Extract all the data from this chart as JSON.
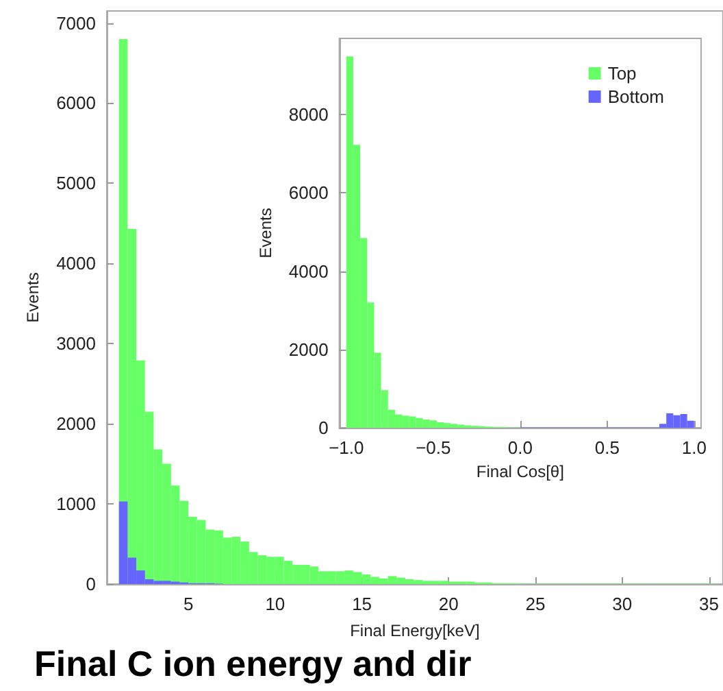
{
  "chart_data": [
    {
      "type": "histogram",
      "title": "Final C ion energy and dir",
      "xlabel": "Final Energy[keV]",
      "ylabel": "Events",
      "xlim": [
        0.3,
        35.8
      ],
      "ylim": [
        0,
        7150
      ],
      "xticks": [
        5,
        10,
        15,
        20,
        25,
        30,
        35
      ],
      "yticks": [
        0,
        1000,
        2000,
        3000,
        4000,
        5000,
        6000,
        7000
      ],
      "grid": false,
      "legend": false,
      "bins": [
        1,
        1.5,
        2,
        2.5,
        3,
        3.5,
        4,
        4.5,
        5,
        5.5,
        6,
        6.5,
        7,
        7.5,
        8,
        8.5,
        9,
        9.5,
        10,
        10.5,
        11,
        11.5,
        12,
        12.5,
        13,
        13.5,
        14,
        14.5,
        15,
        15.5,
        16,
        16.5,
        17,
        17.5,
        18,
        18.5,
        19,
        19.5,
        20,
        20.5,
        21,
        21.5,
        22,
        22.5,
        23,
        23.5,
        24,
        24.5,
        25,
        25.5,
        26,
        26.5,
        27,
        27.5,
        28,
        28.5,
        29,
        29.5,
        30,
        30.5,
        31,
        31.5,
        32,
        32.5,
        33,
        33.5,
        34,
        34.5,
        35,
        35.5
      ],
      "series": [
        {
          "color": "#66ff66",
          "values": [
            6800,
            4430,
            2790,
            2150,
            1680,
            1500,
            1230,
            1040,
            840,
            800,
            680,
            670,
            580,
            590,
            530,
            400,
            360,
            340,
            340,
            290,
            240,
            240,
            220,
            160,
            160,
            160,
            170,
            150,
            120,
            90,
            70,
            100,
            80,
            60,
            50,
            40,
            40,
            40,
            30,
            30,
            30,
            20,
            20,
            10,
            10,
            10,
            5,
            5,
            5,
            5,
            5,
            5,
            5,
            5,
            5,
            5,
            5,
            5,
            5,
            5,
            5,
            5,
            5,
            5,
            5,
            5,
            5,
            5,
            5
          ]
        },
        {
          "color": "#6666ff",
          "values": [
            1030,
            330,
            170,
            60,
            40,
            40,
            30,
            20,
            10,
            10,
            10,
            5,
            0,
            0,
            0,
            0,
            0,
            0,
            0,
            0,
            0,
            0,
            0,
            0,
            0,
            0,
            0,
            0,
            0,
            0,
            0,
            0,
            0,
            0,
            0,
            0,
            0,
            0,
            0,
            0,
            0,
            0,
            0,
            0,
            0,
            0,
            0,
            0,
            0,
            0,
            0,
            0,
            0,
            0,
            0,
            0,
            0,
            0,
            0,
            0,
            0,
            0,
            0,
            0,
            0,
            0,
            0,
            0,
            0
          ]
        }
      ]
    },
    {
      "type": "histogram",
      "xlabel": "Final Cos[θ]",
      "ylabel": "Events",
      "xlim": [
        -1.04,
        1.04
      ],
      "ylim": [
        0,
        9950
      ],
      "xticks": [
        {
          "value": -1,
          "label": "−1.0"
        },
        {
          "value": -0.5,
          "label": "−0.5"
        },
        {
          "value": 0,
          "label": "0.0"
        },
        {
          "value": 0.5,
          "label": "0.5"
        },
        {
          "value": 1,
          "label": "1.0"
        }
      ],
      "yticks": [
        0,
        2000,
        4000,
        6000,
        8000
      ],
      "grid": false,
      "legend": "top right",
      "bins": [
        -1,
        -0.96,
        -0.92,
        -0.88,
        -0.84,
        -0.8,
        -0.76,
        -0.72,
        -0.68,
        -0.64,
        -0.6,
        -0.56,
        -0.52,
        -0.48,
        -0.44,
        -0.4,
        -0.36,
        -0.32,
        -0.28,
        -0.24,
        -0.2,
        -0.16,
        -0.12,
        -0.08,
        -0.04,
        0,
        0.04,
        0.08,
        0.12,
        0.16,
        0.2,
        0.24,
        0.28,
        0.32,
        0.36,
        0.4,
        0.44,
        0.48,
        0.52,
        0.56,
        0.6,
        0.64,
        0.68,
        0.72,
        0.76,
        0.8,
        0.84,
        0.88,
        0.92,
        0.96,
        1
      ],
      "series": [
        {
          "name": "Top",
          "color": "#66ff66",
          "values": [
            9490,
            7230,
            4850,
            3200,
            1920,
            960,
            460,
            340,
            310,
            290,
            250,
            210,
            190,
            140,
            120,
            100,
            80,
            60,
            50,
            40,
            30,
            20,
            20,
            10,
            10,
            null,
            null,
            0,
            0,
            0,
            0,
            0,
            0,
            0,
            0,
            0,
            0,
            0,
            0,
            0,
            0,
            0,
            0,
            0,
            0,
            0,
            0,
            0,
            0,
            0
          ]
        },
        {
          "name": "Bottom",
          "color": "#6666ff",
          "values": [
            0,
            0,
            0,
            0,
            0,
            0,
            0,
            0,
            0,
            0,
            0,
            0,
            0,
            0,
            0,
            0,
            0,
            0,
            0,
            0,
            0,
            0,
            0,
            0,
            0,
            10,
            10,
            10,
            10,
            10,
            10,
            10,
            10,
            10,
            10,
            10,
            10,
            10,
            10,
            10,
            10,
            10,
            10,
            10,
            10,
            100,
            370,
            320,
            350,
            180
          ]
        }
      ]
    }
  ]
}
